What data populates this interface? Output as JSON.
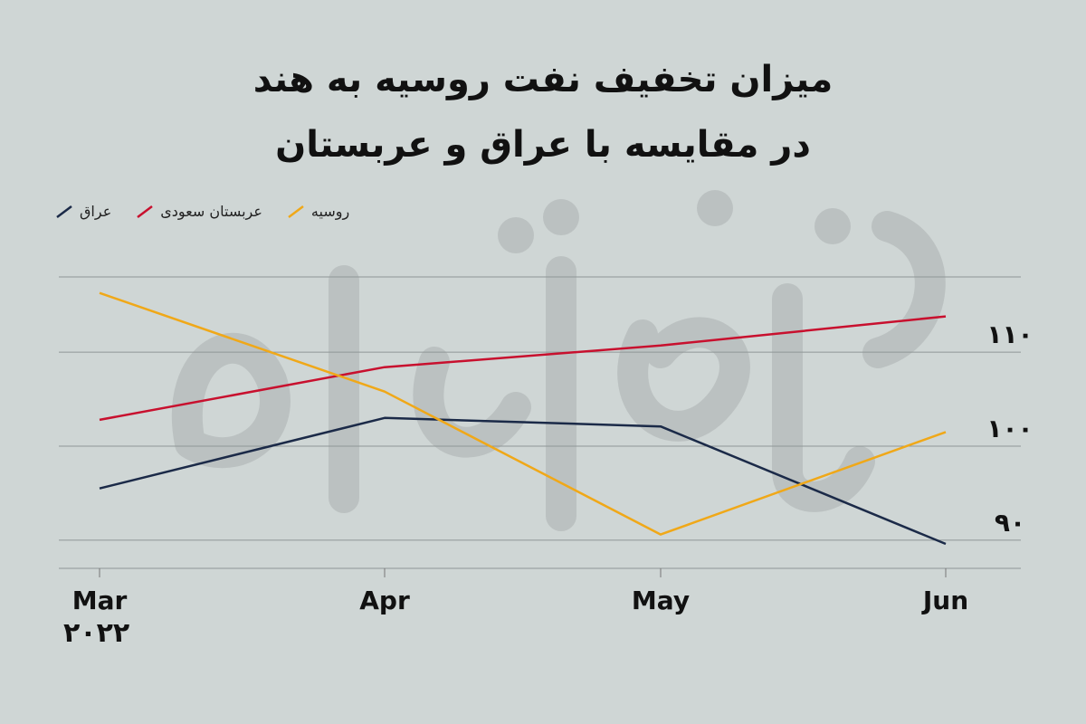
{
  "title_lines": [
    "میزان تخفیف نفت روسیه به هند",
    "در مقایسه با عراق و عربستان"
  ],
  "year_label": "۲۰۲۲",
  "chart_data": {
    "type": "line",
    "categories": [
      "Mar",
      "Apr",
      "May",
      "Jun"
    ],
    "y_ticks": [
      {
        "value": 90,
        "label": "۹۰"
      },
      {
        "value": 100,
        "label": "۱۰۰"
      },
      {
        "value": 110,
        "label": "۱۱۰"
      }
    ],
    "ylim": [
      87,
      118
    ],
    "grid": true,
    "legend_position": "top-left",
    "series": [
      {
        "name": "عراق",
        "color": "#1b2a48",
        "values": [
          95.5,
          103,
          102.1,
          89.6
        ]
      },
      {
        "name": "عربستان سعودی",
        "color": "#c8102e",
        "values": [
          102.8,
          108.4,
          110.7,
          113.8
        ]
      },
      {
        "name": "روسیه",
        "color": "#f0a818",
        "values": [
          116.3,
          105.8,
          90.6,
          101.5
        ]
      }
    ]
  }
}
